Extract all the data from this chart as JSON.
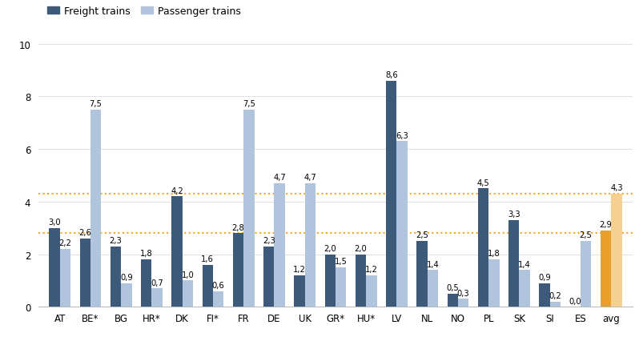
{
  "categories": [
    "AT",
    "BE*",
    "BG",
    "HR*",
    "DK",
    "FI*",
    "FR",
    "DE",
    "UK",
    "GR*",
    "HU*",
    "LV",
    "NL",
    "NO",
    "PL",
    "SK",
    "SI",
    "ES",
    "avg"
  ],
  "freight": [
    3.0,
    2.6,
    2.3,
    1.8,
    4.2,
    1.6,
    2.8,
    2.3,
    1.2,
    2.0,
    2.0,
    8.6,
    2.5,
    0.5,
    4.5,
    3.3,
    0.9,
    0.0,
    2.9
  ],
  "passenger": [
    2.2,
    7.5,
    0.9,
    0.7,
    1.0,
    0.6,
    7.5,
    4.7,
    4.7,
    1.5,
    1.2,
    6.3,
    1.4,
    0.3,
    1.8,
    1.4,
    0.2,
    2.5,
    4.3
  ],
  "freight_labels": [
    "3,0",
    "2,6",
    "2,3",
    "1,8",
    "4,2",
    "1,6",
    "2,8",
    "2,3",
    "1,2",
    "2,0",
    "2,0",
    "8,6",
    "2,5",
    "0,5",
    "4,5",
    "3,3",
    "0,9",
    "0,0",
    "2,9"
  ],
  "passenger_labels": [
    "2,2",
    "7,5",
    "0,9",
    "0,7",
    "1,0",
    "0,6",
    "7,5",
    "4,7",
    "4,7",
    "1,5",
    "1,2",
    "6,3",
    "1,4",
    "0,3",
    "1,8",
    "1,4",
    "0,2",
    "2,5",
    "4,3"
  ],
  "freight_color": "#3d5a7a",
  "passenger_color": "#b0c4de",
  "avg_freight_color": "#e8a028",
  "avg_passenger_color": "#f5d090",
  "hline1": 2.8,
  "hline2": 4.3,
  "hline_color": "#f5a623",
  "ylim": [
    0,
    10
  ],
  "yticks": [
    0,
    2,
    4,
    6,
    8,
    10
  ],
  "legend_freight": "Freight trains",
  "legend_passenger": "Passenger trains",
  "bar_width": 0.35,
  "label_fontsize": 7.2,
  "tick_fontsize": 8.5
}
